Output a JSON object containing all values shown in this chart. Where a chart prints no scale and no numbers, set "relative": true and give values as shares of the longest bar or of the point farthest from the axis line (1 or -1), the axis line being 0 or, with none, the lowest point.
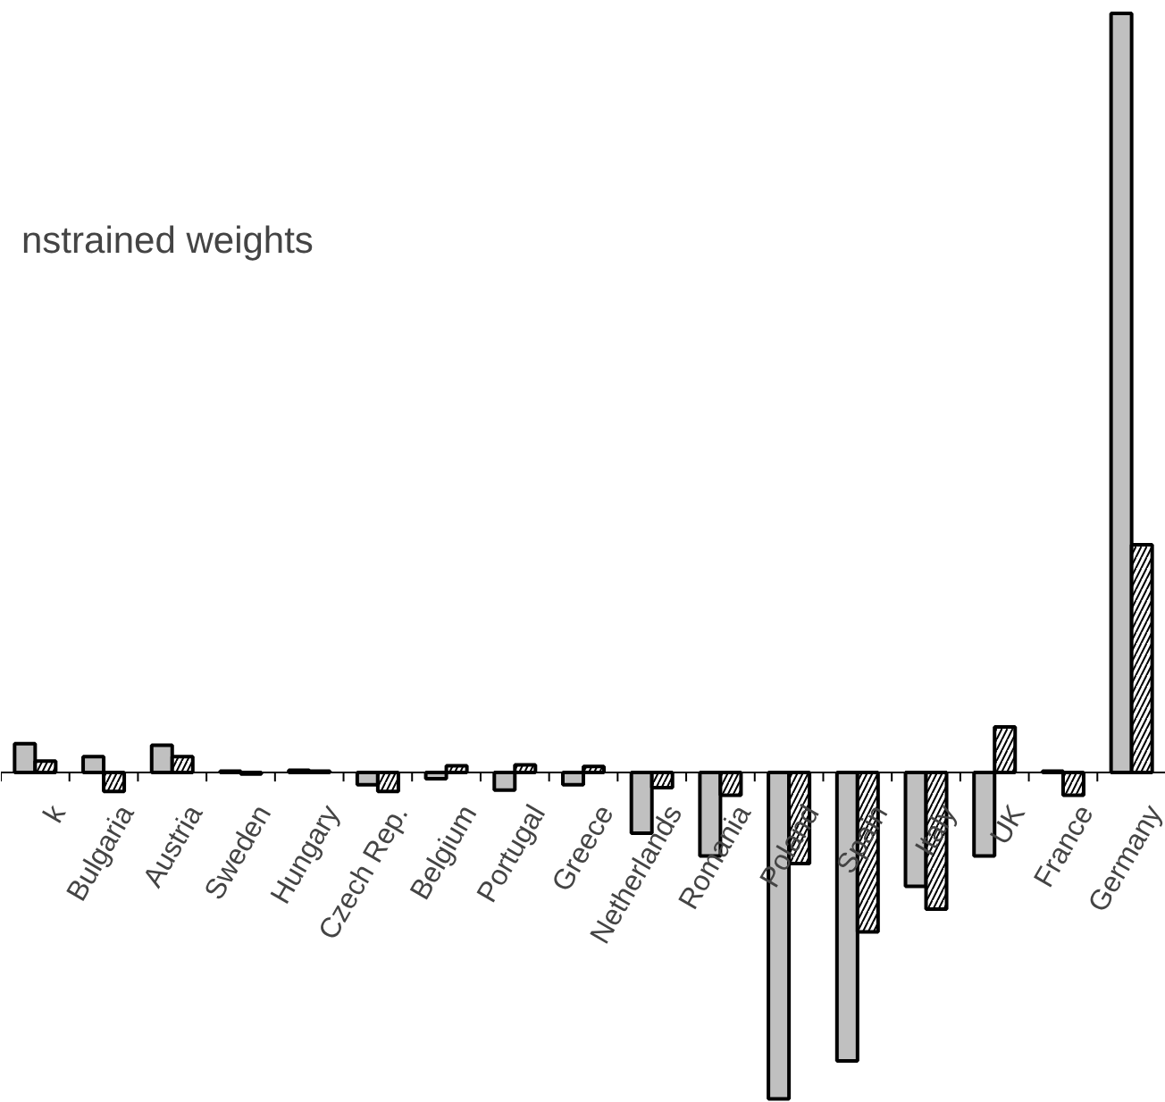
{
  "chart_data": {
    "type": "bar",
    "relative": true,
    "categories": [
      "k",
      "Bulgaria",
      "Austria",
      "Sweden",
      "Hungary",
      "Czech Rep.",
      "Belgium",
      "Portugal",
      "Greece",
      "Netherlands",
      "Romania",
      "Poland",
      "Spain",
      "Italy",
      "UK",
      "France",
      "Germany"
    ],
    "series": [
      {
        "color": "#c0c0c0",
        "values": [
          0.038,
          0.021,
          0.036,
          0.002,
          0.003,
          -0.016,
          -0.008,
          -0.023,
          -0.016,
          -0.08,
          -0.11,
          -0.43,
          -0.38,
          -0.15,
          -0.11,
          0.002,
          1
        ]
      },
      {
        "color": "#ffffff",
        "values": [
          0.015,
          -0.025,
          0.021,
          -0.002,
          0.002,
          -0.025,
          0.009,
          0.01,
          0.008,
          -0.02,
          -0.03,
          -0.12,
          -0.21,
          -0.18,
          0.06,
          -0.03,
          0.3
        ]
      }
    ],
    "annotations": [
      "nstrained weights"
    ],
    "grid": false
  }
}
